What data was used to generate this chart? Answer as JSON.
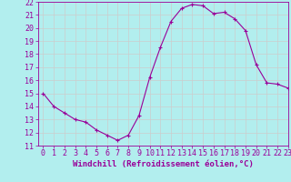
{
  "x": [
    0,
    1,
    2,
    3,
    4,
    5,
    6,
    7,
    8,
    9,
    10,
    11,
    12,
    13,
    14,
    15,
    16,
    17,
    18,
    19,
    20,
    21,
    22,
    23
  ],
  "y": [
    15,
    14,
    13.5,
    13,
    12.8,
    12.2,
    11.8,
    11.4,
    11.8,
    13.3,
    16.2,
    18.5,
    20.5,
    21.5,
    21.8,
    21.7,
    21.1,
    21.2,
    20.7,
    19.8,
    17.2,
    15.8,
    15.7,
    15.4
  ],
  "line_color": "#990099",
  "marker": "+",
  "marker_size": 3,
  "marker_linewidth": 0.8,
  "line_width": 0.8,
  "background_color": "#b2eeee",
  "grid_color": "#cccccc",
  "xlabel": "Windchill (Refroidissement éolien,°C)",
  "xlabel_fontsize": 6.5,
  "tick_fontsize": 6,
  "ylim": [
    11,
    22
  ],
  "xlim": [
    -0.5,
    23
  ],
  "yticks": [
    11,
    12,
    13,
    14,
    15,
    16,
    17,
    18,
    19,
    20,
    21,
    22
  ],
  "xticks": [
    0,
    1,
    2,
    3,
    4,
    5,
    6,
    7,
    8,
    9,
    10,
    11,
    12,
    13,
    14,
    15,
    16,
    17,
    18,
    19,
    20,
    21,
    22,
    23
  ]
}
